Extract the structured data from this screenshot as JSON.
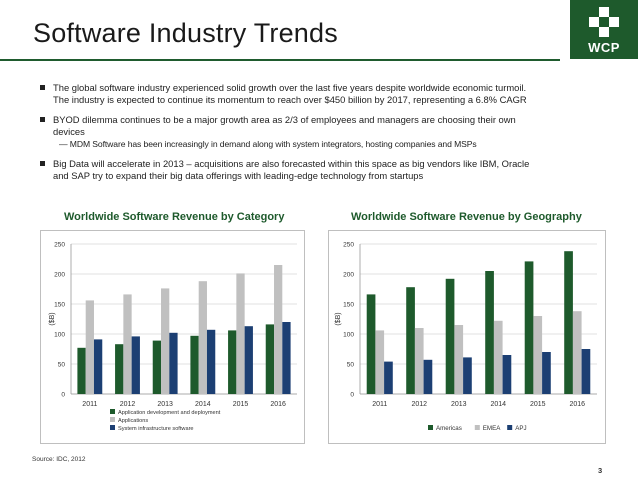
{
  "slide": {
    "title": "Software Industry Trends",
    "logo_text": "WCP",
    "bullets": [
      {
        "lines": [
          "The global software industry experienced solid growth over the last five years despite worldwide economic turmoil.",
          "The industry is expected to continue its momentum to reach over $450 billion by 2017, representing a 6.8% CAGR"
        ]
      },
      {
        "lines": [
          "BYOD dilemma continues to be a major growth area as 2/3 of employees and managers are choosing their own",
          "devices"
        ],
        "sub": "— MDM Software has been increasingly in demand along with system integrators, hosting companies and MSPs"
      },
      {
        "lines": [
          "Big Data will accelerate in 2013 – acquisitions are also forecasted within this space as big vendors like IBM, Oracle",
          "and SAP try to expand their big data offerings with leading-edge technology from startups"
        ]
      }
    ],
    "source": "Source: IDC, 2012",
    "page_number": "3"
  },
  "colors": {
    "dark_green": "#1e5a2c",
    "gray": "#c0c0c0",
    "navy": "#1c3f73"
  },
  "chart_data": [
    {
      "type": "bar",
      "title": "Worldwide Software Revenue by Category",
      "ylabel": "($B)",
      "ylim": [
        0,
        250
      ],
      "yticks": [
        0,
        50,
        100,
        150,
        200,
        250
      ],
      "categories": [
        "2011",
        "2012",
        "2013",
        "2014",
        "2015",
        "2016"
      ],
      "series": [
        {
          "name": "Application development and deployment",
          "color": "#1e5a2c",
          "values": [
            77,
            83,
            89,
            97,
            106,
            116
          ]
        },
        {
          "name": "Applications",
          "color": "#c0c0c0",
          "values": [
            156,
            166,
            176,
            188,
            201,
            215
          ]
        },
        {
          "name": "System infrastructure software",
          "color": "#1c3f73",
          "values": [
            91,
            96,
            102,
            107,
            113,
            120
          ]
        }
      ],
      "legend": "bottom-stacked"
    },
    {
      "type": "bar",
      "title": "Worldwide Software Revenue by Geography",
      "ylabel": "($B)",
      "ylim": [
        0,
        250
      ],
      "yticks": [
        0,
        50,
        100,
        150,
        200,
        250
      ],
      "categories": [
        "2011",
        "2012",
        "2013",
        "2014",
        "2015",
        "2016"
      ],
      "series": [
        {
          "name": "Americas",
          "color": "#1e5a2c",
          "values": [
            166,
            178,
            192,
            205,
            221,
            238
          ]
        },
        {
          "name": "EMEA",
          "color": "#c0c0c0",
          "values": [
            106,
            110,
            115,
            122,
            130,
            138
          ]
        },
        {
          "name": "APJ",
          "color": "#1c3f73",
          "values": [
            54,
            57,
            61,
            65,
            70,
            75
          ]
        }
      ],
      "legend": "bottom-row"
    }
  ]
}
